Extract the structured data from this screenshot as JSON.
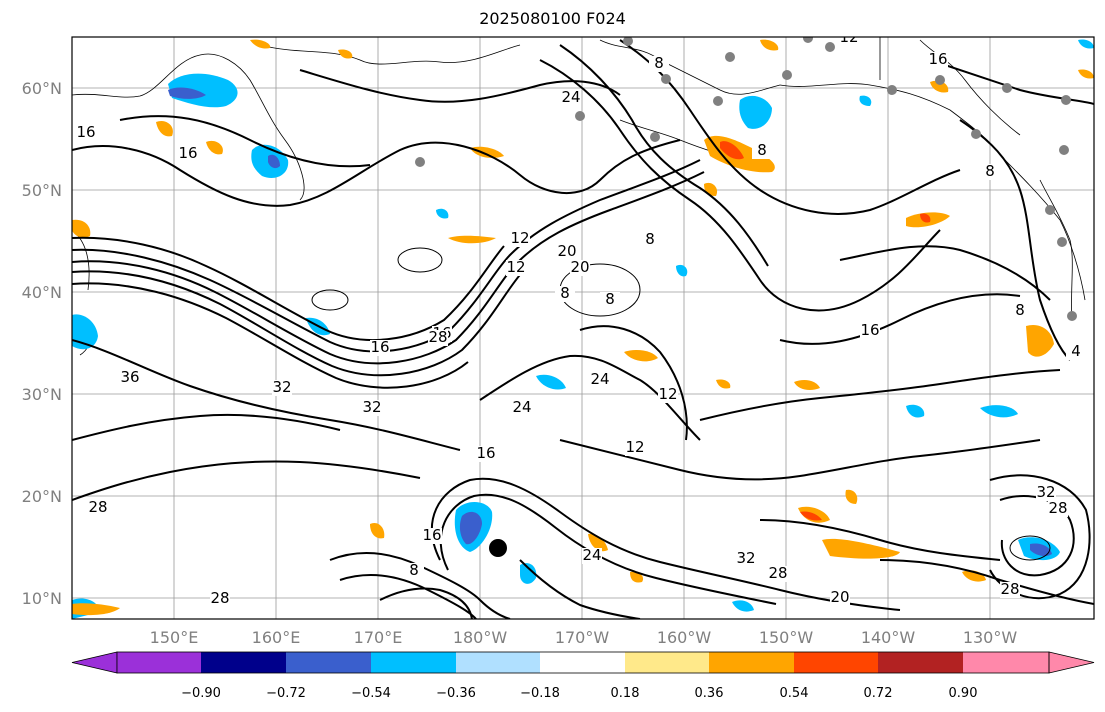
{
  "title": "2025080100 F024",
  "lat_labels": [
    "60°N",
    "50°N",
    "40°N",
    "30°N",
    "20°N",
    "10°N"
  ],
  "lon_labels": [
    "150°E",
    "160°E",
    "170°E",
    "180°W",
    "170°W",
    "160°W",
    "150°W",
    "140°W",
    "130°W"
  ],
  "colorbar": {
    "tick_labels": [
      "−0.90",
      "−0.72",
      "−0.54",
      "−0.36",
      "−0.18",
      "0.18",
      "0.36",
      "0.54",
      "0.72",
      "0.90"
    ],
    "colors": [
      "#9b30d9",
      "#00008b",
      "#3a5fcd",
      "#00bfff",
      "#b0e0ff",
      "#ffffff",
      "#ffe98a",
      "#ffa500",
      "#ff4500",
      "#b22222",
      "#ff88aa"
    ]
  },
  "contour_labels": [
    "16",
    "16",
    "8",
    "12",
    "24",
    "8",
    "16",
    "12",
    "20",
    "12",
    "8",
    "20",
    "8",
    "8",
    "8",
    "16",
    "28",
    "16",
    "16",
    "36",
    "32",
    "32",
    "24",
    "24",
    "24",
    "12",
    "12",
    "16",
    "8",
    "28",
    "28",
    "16",
    "8",
    "28",
    "32",
    "28",
    "20",
    "28",
    "32",
    "4"
  ],
  "station_marker": "storm-center"
}
